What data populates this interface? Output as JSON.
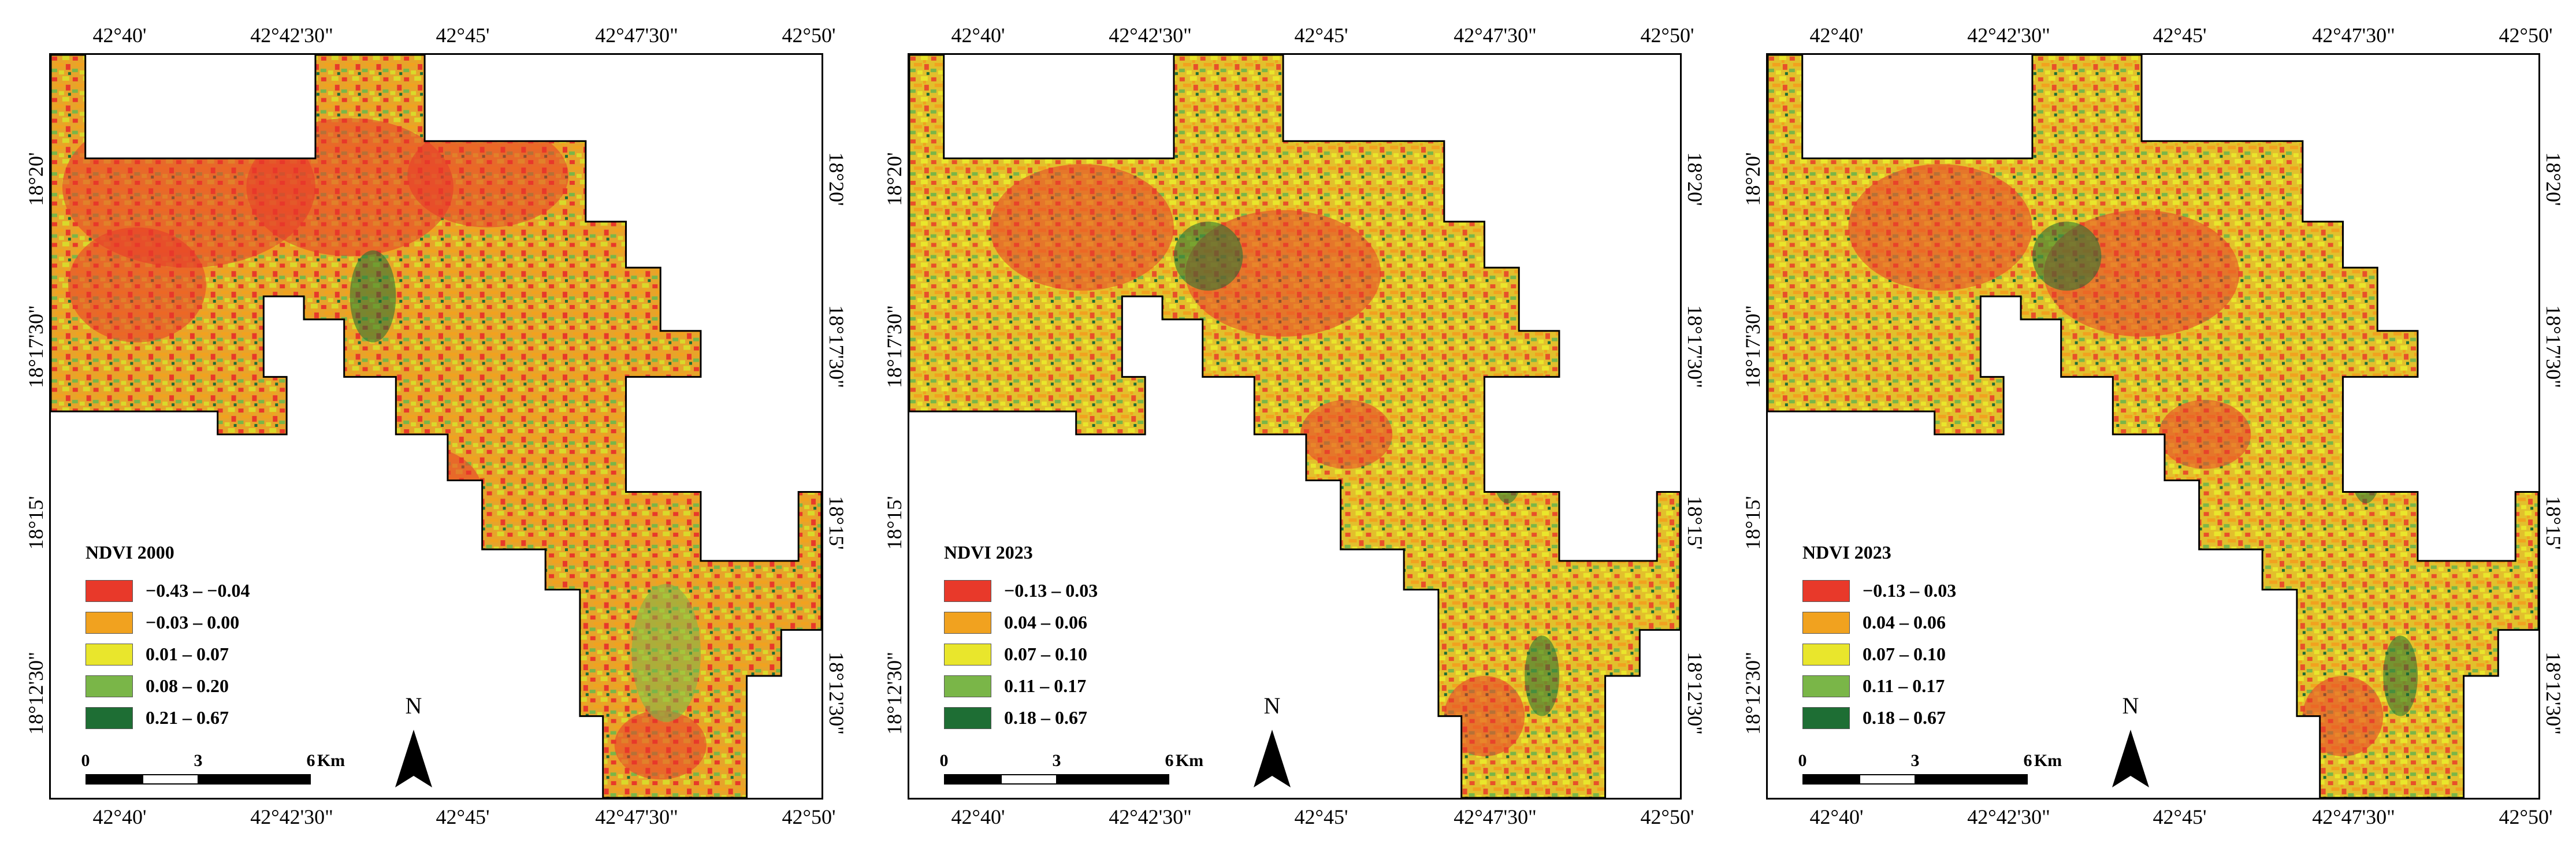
{
  "panels": [
    {
      "legend_title": "NDVI 2000",
      "legend": [
        {
          "label": "−0.43 – −0.04",
          "color": "#e8392a"
        },
        {
          "label": "−0.03 – 0.00",
          "color": "#f1a21f"
        },
        {
          "label": "0.01 – 0.07",
          "color": "#e9e62c"
        },
        {
          "label": "0.08 – 0.20",
          "color": "#7ab648"
        },
        {
          "label": "0.21 – 0.67",
          "color": "#1e6e34"
        }
      ]
    },
    {
      "legend_title": "NDVI 2023",
      "legend": [
        {
          "label": "−0.13 – 0.03",
          "color": "#e8392a"
        },
        {
          "label": "0.04 – 0.06",
          "color": "#f1a21f"
        },
        {
          "label": "0.07 – 0.10",
          "color": "#e9e62c"
        },
        {
          "label": "0.11 – 0.17",
          "color": "#7ab648"
        },
        {
          "label": "0.18 – 0.67",
          "color": "#1e6e34"
        }
      ]
    },
    {
      "legend_title": "NDVI 2023",
      "legend": [
        {
          "label": "−0.13 – 0.03",
          "color": "#e8392a"
        },
        {
          "label": "0.04 – 0.06",
          "color": "#f1a21f"
        },
        {
          "label": "0.07 – 0.10",
          "color": "#e9e62c"
        },
        {
          "label": "0.11 – 0.17",
          "color": "#7ab648"
        },
        {
          "label": "0.18 – 0.67",
          "color": "#1e6e34"
        }
      ]
    }
  ],
  "longitude_ticks": [
    "42°40'",
    "42°42'30\"",
    "42°45'",
    "42°47'30\"",
    "42°50'"
  ],
  "latitude_ticks": [
    "18°20'",
    "18°17'30\"",
    "18°15'",
    "18°12'30\""
  ],
  "scale_bar": {
    "labels": [
      "0",
      "3",
      "6"
    ],
    "unit": "Km"
  },
  "north_label": "N"
}
